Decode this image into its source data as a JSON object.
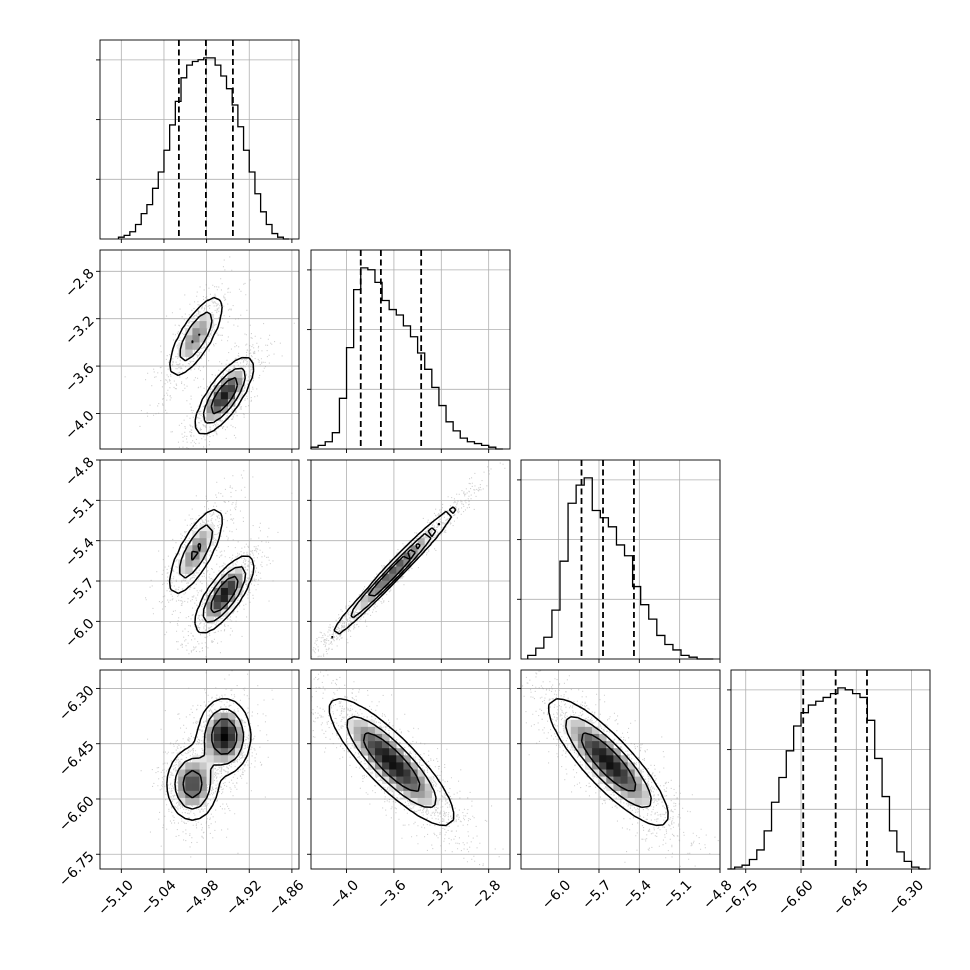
{
  "chart_data": {
    "type": "corner",
    "grid": true,
    "parameters": [
      {
        "range": [
          -5.13,
          -4.85
        ],
        "ticks": [
          -5.1,
          -5.04,
          -4.98,
          -4.92,
          -4.86
        ],
        "tick_labels": [
          "−5.10",
          "−5.04",
          "−4.98",
          "−4.92",
          "−4.86"
        ],
        "quantiles": [
          -5.019,
          -4.981,
          -4.943
        ],
        "hist": {
          "centers": [
            -5.1,
            -5.092,
            -5.084,
            -5.076,
            -5.068,
            -5.06,
            -5.052,
            -5.044,
            -5.036,
            -5.028,
            -5.02,
            -5.012,
            -5.004,
            -4.996,
            -4.988,
            -4.98,
            -4.972,
            -4.964,
            -4.956,
            -4.948,
            -4.94,
            -4.932,
            -4.924,
            -4.916,
            -4.908,
            -4.9,
            -4.892,
            -4.884,
            -4.876,
            -4.868
          ],
          "counts": [
            1,
            2,
            4,
            8,
            14,
            19,
            28,
            37,
            49,
            63,
            76,
            89,
            96,
            98,
            99,
            100,
            100,
            96,
            90,
            83,
            74,
            62,
            49,
            37,
            25,
            15,
            8,
            3,
            1,
            0
          ]
        }
      },
      {
        "range": [
          -4.3,
          -2.62
        ],
        "ticks": [
          -4.0,
          -3.6,
          -3.2,
          -2.8
        ],
        "tick_labels": [
          "−4.0",
          "−3.6",
          "−3.2",
          "−2.8"
        ],
        "quantiles": [
          -3.88,
          -3.71,
          -3.37
        ],
        "hist": {
          "centers": [
            -4.27,
            -4.21,
            -4.15,
            -4.09,
            -4.03,
            -3.97,
            -3.91,
            -3.85,
            -3.79,
            -3.73,
            -3.67,
            -3.61,
            -3.55,
            -3.49,
            -3.43,
            -3.37,
            -3.31,
            -3.25,
            -3.19,
            -3.13,
            -3.07,
            -3.01,
            -2.95,
            -2.89,
            -2.83,
            -2.77,
            -2.71
          ],
          "counts": [
            1,
            2,
            4,
            9,
            28,
            56,
            88,
            100,
            99,
            92,
            82,
            77,
            74,
            68,
            62,
            53,
            44,
            34,
            24,
            15,
            10,
            6,
            4,
            3,
            2,
            1,
            0
          ]
        }
      },
      {
        "range": [
          -6.28,
          -4.8
        ],
        "ticks": [
          -6.0,
          -5.7,
          -5.4,
          -5.1,
          -4.8
        ],
        "tick_labels": [
          "−6.0",
          "−5.7",
          "−5.4",
          "−5.1",
          "−4.8"
        ],
        "quantiles": [
          -5.83,
          -5.67,
          -5.44
        ],
        "hist": {
          "centers": [
            -6.2,
            -6.14,
            -6.08,
            -6.02,
            -5.96,
            -5.9,
            -5.84,
            -5.78,
            -5.72,
            -5.66,
            -5.6,
            -5.54,
            -5.48,
            -5.42,
            -5.36,
            -5.3,
            -5.24,
            -5.18,
            -5.12,
            -5.06,
            -5.0,
            -4.94,
            -4.88
          ],
          "counts": [
            2,
            6,
            12,
            27,
            54,
            86,
            96,
            100,
            82,
            78,
            73,
            63,
            57,
            40,
            30,
            22,
            13,
            8,
            5,
            2,
            1,
            0,
            0
          ]
        }
      },
      {
        "range": [
          -6.79,
          -6.25
        ],
        "ticks": [
          -6.75,
          -6.6,
          -6.45,
          -6.3
        ],
        "tick_labels": [
          "−6.75",
          "−6.60",
          "−6.45",
          "−6.30"
        ],
        "quantiles": [
          -6.594,
          -6.506,
          -6.421
        ],
        "hist": {
          "centers": [
            -6.79,
            -6.77,
            -6.75,
            -6.73,
            -6.71,
            -6.69,
            -6.67,
            -6.65,
            -6.63,
            -6.61,
            -6.59,
            -6.57,
            -6.55,
            -6.53,
            -6.51,
            -6.49,
            -6.47,
            -6.45,
            -6.43,
            -6.41,
            -6.39,
            -6.37,
            -6.35,
            -6.33,
            -6.31,
            -6.29,
            -6.27
          ],
          "counts": [
            0,
            1,
            2,
            5,
            10,
            20,
            35,
            48,
            62,
            75,
            82,
            86,
            88,
            90,
            92,
            95,
            94,
            92,
            90,
            78,
            58,
            38,
            20,
            9,
            4,
            1,
            0
          ]
        }
      }
    ],
    "pairs": [
      {
        "row": 1,
        "col": 0,
        "modes": [
          {
            "mean": [
              -4.995,
              -3.35
            ],
            "sd": [
              0.02,
              0.18
            ],
            "rho": 0.75,
            "weight": 0.4
          },
          {
            "mean": [
              -4.955,
              -3.85
            ],
            "sd": [
              0.02,
              0.16
            ],
            "rho": 0.75,
            "weight": 0.6
          }
        ]
      },
      {
        "row": 2,
        "col": 0,
        "modes": [
          {
            "mean": [
              -4.995,
              -5.48
            ],
            "sd": [
              0.02,
              0.17
            ],
            "rho": 0.75,
            "weight": 0.4
          },
          {
            "mean": [
              -4.955,
              -5.8
            ],
            "sd": [
              0.02,
              0.14
            ],
            "rho": 0.75,
            "weight": 0.6
          }
        ]
      },
      {
        "row": 2,
        "col": 1,
        "modes": [
          {
            "mean": [
              -3.6,
              -5.63
            ],
            "sd": [
              0.26,
              0.24
            ],
            "rho": 0.985,
            "weight": 1.0
          }
        ]
      },
      {
        "row": 3,
        "col": 0,
        "modes": [
          {
            "mean": [
              -4.955,
              -6.43
            ],
            "sd": [
              0.018,
              0.05
            ],
            "rho": 0.0,
            "weight": 0.55
          },
          {
            "mean": [
              -5.0,
              -6.56
            ],
            "sd": [
              0.018,
              0.05
            ],
            "rho": 0.0,
            "weight": 0.45
          }
        ]
      },
      {
        "row": 3,
        "col": 1,
        "modes": [
          {
            "mean": [
              -3.62,
              -6.5
            ],
            "sd": [
              0.26,
              0.085
            ],
            "rho": -0.85,
            "weight": 1.0
          }
        ]
      },
      {
        "row": 3,
        "col": 2,
        "modes": [
          {
            "mean": [
              -5.63,
              -6.5
            ],
            "sd": [
              0.22,
              0.085
            ],
            "rho": -0.85,
            "weight": 1.0
          }
        ]
      }
    ]
  }
}
